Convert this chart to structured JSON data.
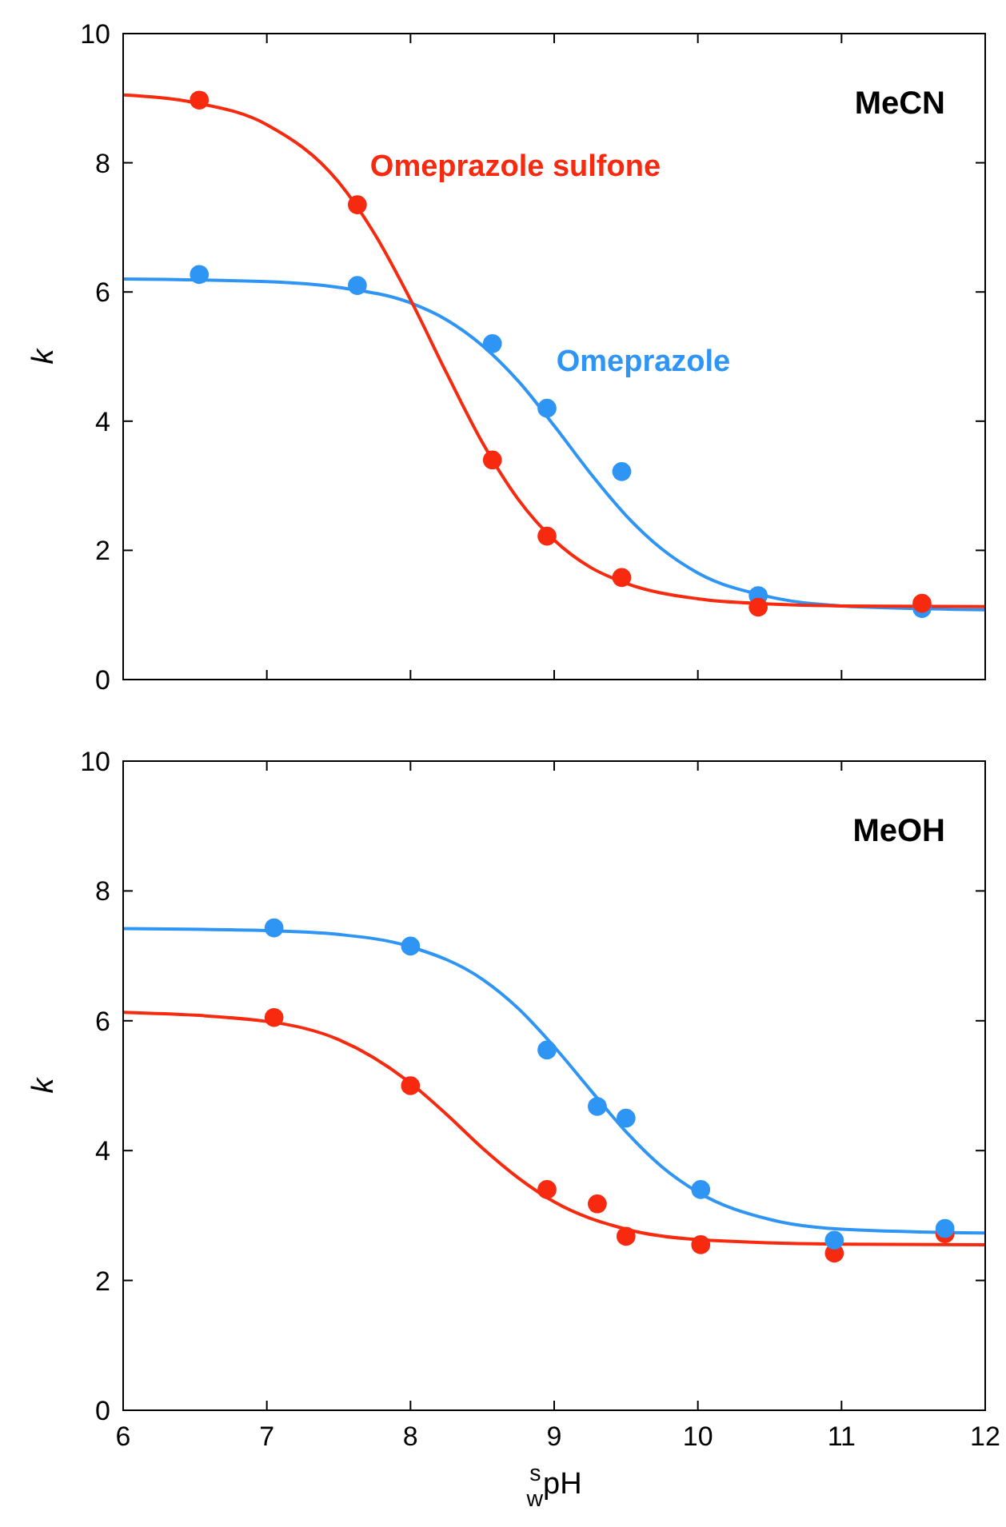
{
  "chart_data": [
    {
      "type": "scatter",
      "xlim": [
        6,
        12
      ],
      "xticks": [
        6,
        7,
        8,
        9,
        10,
        11,
        12
      ],
      "ylim": [
        0,
        10
      ],
      "yticks": [
        0,
        2,
        4,
        6,
        8,
        10
      ],
      "ylabel": "k",
      "tick_labels": "y",
      "annotations": [
        "MeCN"
      ],
      "series": [
        {
          "name": "Omeprazole sulfone",
          "color": "#f7290f",
          "marker": "circle",
          "x": [
            6.53,
            7.63,
            8.57,
            8.95,
            9.47,
            10.42,
            11.56
          ],
          "values": [
            8.97,
            7.35,
            3.4,
            2.22,
            1.58,
            1.12,
            1.18
          ]
        },
        {
          "name": "Omeprazole",
          "color": "#2f95f5",
          "marker": "circle",
          "x": [
            6.53,
            7.63,
            8.57,
            8.95,
            9.47,
            10.42,
            11.56
          ],
          "values": [
            6.27,
            6.1,
            5.2,
            4.2,
            3.22,
            1.3,
            1.1
          ]
        },
        {
          "type": "line",
          "color": "#f7290f",
          "x": [
            6,
            6.5,
            7,
            7.5,
            7.75,
            8,
            8.25,
            8.5,
            8.75,
            9,
            9.25,
            9.5,
            10,
            10.5,
            11,
            12
          ],
          "values": [
            9.05,
            8.93,
            8.59,
            7.7,
            6.9,
            5.88,
            4.75,
            3.67,
            2.79,
            2.16,
            1.74,
            1.49,
            1.25,
            1.17,
            1.14,
            1.13
          ]
        },
        {
          "type": "line",
          "color": "#2f95f5",
          "x": [
            6,
            7,
            7.5,
            8,
            8.25,
            8.5,
            8.75,
            9,
            9.25,
            9.5,
            9.75,
            10,
            10.5,
            11,
            12
          ],
          "values": [
            6.2,
            6.16,
            6.07,
            5.83,
            5.57,
            5.17,
            4.62,
            3.93,
            3.2,
            2.54,
            2.02,
            1.65,
            1.28,
            1.14,
            1.08
          ]
        }
      ]
    },
    {
      "type": "scatter",
      "xlim": [
        6,
        12
      ],
      "xticks": [
        6,
        7,
        8,
        9,
        10,
        11,
        12
      ],
      "ylim": [
        0,
        10
      ],
      "yticks": [
        0,
        2,
        4,
        6,
        8,
        10
      ],
      "ylabel": "k",
      "xlabel": "$^{s}$$_{w}$pH",
      "annotations": [
        "MeOH"
      ],
      "series": [
        {
          "color": "#2f95f5",
          "marker": "circle",
          "x": [
            7.05,
            8.0,
            8.95,
            9.3,
            9.5,
            10.02,
            10.95,
            11.72
          ],
          "values": [
            7.43,
            7.15,
            5.55,
            4.68,
            4.5,
            3.4,
            2.62,
            2.8
          ]
        },
        {
          "color": "#f7290f",
          "marker": "circle",
          "x": [
            7.05,
            8.0,
            8.95,
            9.3,
            9.5,
            10.02,
            10.95,
            11.72
          ],
          "values": [
            6.05,
            5.0,
            3.4,
            3.18,
            2.68,
            2.55,
            2.42,
            2.72
          ]
        },
        {
          "type": "line",
          "color": "#2f95f5",
          "x": [
            6,
            7,
            7.5,
            8,
            8.5,
            8.75,
            9,
            9.25,
            9.5,
            9.75,
            10,
            10.5,
            11,
            12
          ],
          "values": [
            7.42,
            7.39,
            7.33,
            7.14,
            6.64,
            6.19,
            5.6,
            4.94,
            4.29,
            3.75,
            3.36,
            2.94,
            2.79,
            2.73
          ]
        },
        {
          "type": "line",
          "color": "#f7290f",
          "x": [
            6,
            7,
            7.5,
            8,
            8.25,
            8.5,
            8.75,
            9,
            9.5,
            10,
            11,
            12
          ],
          "values": [
            6.13,
            5.99,
            5.71,
            5.04,
            4.56,
            4.04,
            3.58,
            3.21,
            2.79,
            2.63,
            2.56,
            2.55
          ]
        }
      ]
    }
  ]
}
